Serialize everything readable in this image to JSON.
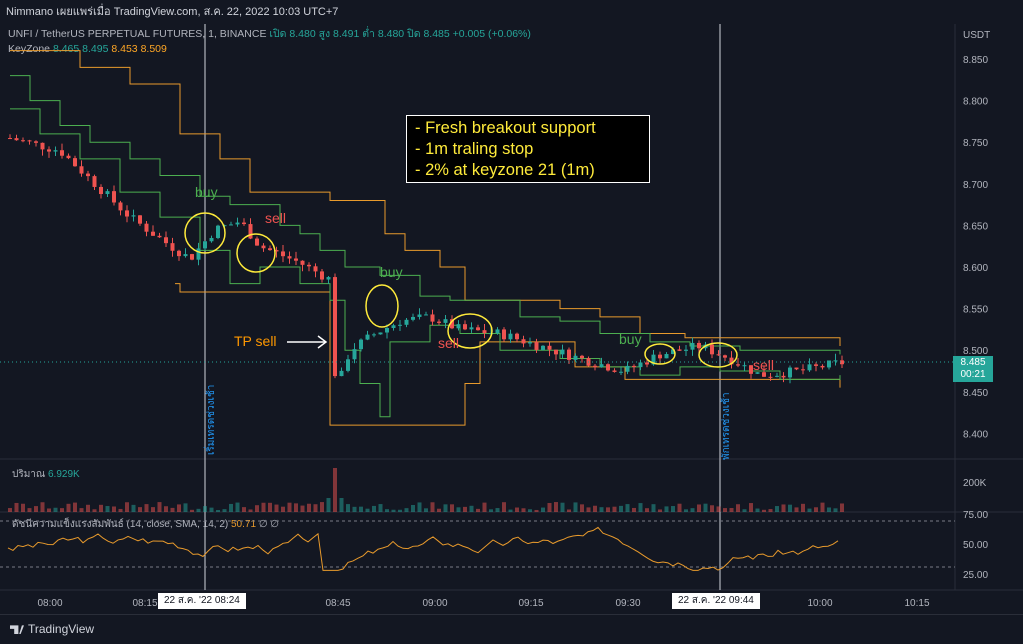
{
  "header": {
    "text": "Nimmano เผยแพร่เมื่อ TradingView.com, ส.ค. 22, 2022 10:03 UTC+7"
  },
  "legend": {
    "symbol": "UNFI / TetherUS PERPETUAL FUTURES, 1, BINANCE",
    "ohlc": "เปิด 8.480  สูง 8.491  ต่ำ 8.480  ปิด 8.485  +0.005 (+0.06%)",
    "keyzone_label": "KeyZone",
    "keyzone_values": [
      "8.465",
      "8.495",
      "8.453",
      "8.509"
    ]
  },
  "axis": {
    "currency": "USDT"
  },
  "annotation_box": {
    "line1": "- Fresh breakout support",
    "line2": "- 1m traling stop",
    "line3": "- 2% at keyzone 21 (1m)"
  },
  "labels": {
    "buy1": "buy",
    "sell1": "sell",
    "buy2": "buy",
    "tp_sell": "TP sell",
    "sell2": "sell",
    "buy3": "buy",
    "sell3": "sell",
    "vert1": "เริ่มเทรดช่วงเช้า",
    "vert2": "พักเทรดช่วงเช้า"
  },
  "volume": {
    "label": "ปริมาณ",
    "value": "6.929K",
    "axis_tick": "200K"
  },
  "rsi": {
    "label": "ดัชนีความแข็งแรงสัมพันธ์ (14, close, SMA, 14, 2)",
    "value": "50.71",
    "extra": "∅ ∅",
    "ticks": [
      "75.00",
      "50.00",
      "25.00"
    ]
  },
  "price_box": {
    "price": "8.485",
    "countdown": "00:21"
  },
  "time_tags": [
    "22 ส.ค. '22   08:24",
    "22 ส.ค. '22   09:44"
  ],
  "footer": {
    "brand": "TradingView"
  },
  "colors": {
    "up": "#26a69a",
    "down": "#ef5350",
    "keyzone_orange": "#e89a2c",
    "keyzone_green": "#4caf50",
    "rsi": "#e89a2c",
    "annot_yellow": "#ffeb3b"
  },
  "chart_data": {
    "type": "candlestick",
    "y_ticks": [
      "8.850",
      "8.800",
      "8.750",
      "8.700",
      "8.650",
      "8.600",
      "8.550",
      "8.500",
      "8.450",
      "8.400"
    ],
    "x_ticks": [
      "08:00",
      "08:15",
      "08:45",
      "09:00",
      "09:15",
      "09:30",
      "10:00",
      "10:15"
    ],
    "ylim": [
      8.38,
      8.88
    ],
    "last_price": 8.485
  }
}
